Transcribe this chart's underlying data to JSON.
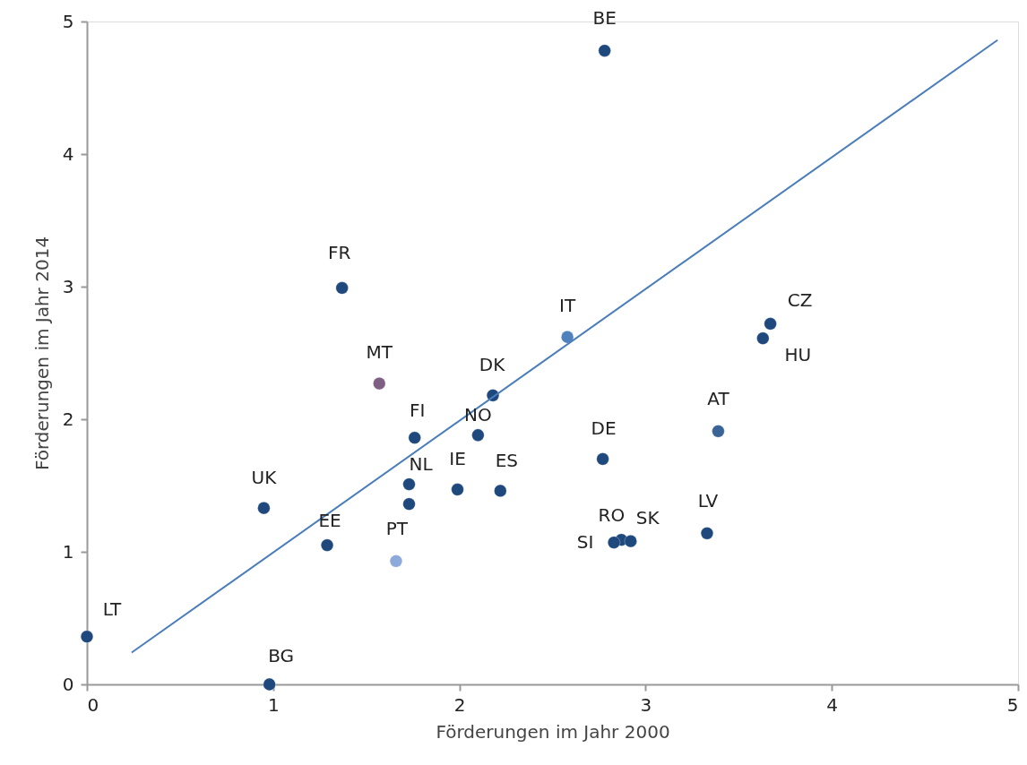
{
  "chart_data": {
    "type": "scatter",
    "xlabel": "Förderungen im Jahr 2000",
    "ylabel": "Förderungen im Jahr 2014",
    "xlim": [
      0,
      5
    ],
    "xticks": [
      0,
      1,
      2,
      3,
      4,
      5
    ],
    "ylim": [
      0,
      5
    ],
    "yticks": [
      0,
      1,
      2,
      3,
      4,
      5
    ],
    "grid": false,
    "marker": "circle",
    "series": [
      {
        "x": [
          2.78,
          1.37,
          1.57,
          2.58,
          3.67,
          3.63,
          2.18,
          3.39,
          1.76,
          2.1,
          2.77,
          1.73,
          1.73,
          1.99,
          2.22,
          0.95,
          1.29,
          1.66,
          2.87,
          2.92,
          2.83,
          3.33,
          0,
          0.98
        ],
        "values": [
          4.78,
          2.99,
          2.27,
          2.62,
          2.72,
          2.61,
          2.18,
          1.91,
          1.86,
          1.88,
          1.7,
          1.51,
          1.36,
          1.47,
          1.46,
          1.33,
          1.05,
          0.93,
          1.09,
          1.08,
          1.07,
          1.14,
          0.36,
          0
        ],
        "colors": [
          "#1f497d",
          "#1f497d",
          "#7f6084",
          "#4f81bd",
          "#1f497d",
          "#1f497d",
          "#1f497d",
          "#3a6496",
          "#1f497d",
          "#1f497d",
          "#1f497d",
          "#1f497d",
          "#1f497d",
          "#1f497d",
          "#1f497d",
          "#1f497d",
          "#1f497d",
          "#8eaadb",
          "#1f497d",
          "#1f497d",
          "#1f497d",
          "#1f497d",
          "#1f497d",
          "#1f497d"
        ]
      },
      {
        "type": "line",
        "marker": "none",
        "line_style": "solid",
        "color": "#4a7ebb",
        "x": [
          0.24,
          4.89
        ],
        "values": [
          0.24,
          4.86
        ]
      }
    ],
    "annotations": [
      {
        "text": "BE",
        "x": 2.78,
        "y": 4.78
      },
      {
        "text": "FR",
        "x": 1.37,
        "y": 2.99
      },
      {
        "text": "MT",
        "x": 1.57,
        "y": 2.27
      },
      {
        "text": "IT",
        "x": 2.58,
        "y": 2.62
      },
      {
        "text": "CZ",
        "x": 3.67,
        "y": 2.72
      },
      {
        "text": "HU",
        "x": 3.63,
        "y": 2.61
      },
      {
        "text": "DK",
        "x": 2.18,
        "y": 2.18
      },
      {
        "text": "AT",
        "x": 3.39,
        "y": 1.91
      },
      {
        "text": "FI",
        "x": 1.76,
        "y": 1.86
      },
      {
        "text": "NO",
        "x": 2.1,
        "y": 1.88
      },
      {
        "text": "DE",
        "x": 2.77,
        "y": 1.7
      },
      {
        "text": "NL",
        "x": 1.73,
        "y": 1.51
      },
      {
        "text": "IE",
        "x": 1.99,
        "y": 1.47
      },
      {
        "text": "ES",
        "x": 2.22,
        "y": 1.46
      },
      {
        "text": "UK",
        "x": 0.95,
        "y": 1.33
      },
      {
        "text": "EE",
        "x": 1.29,
        "y": 1.05
      },
      {
        "text": "PT",
        "x": 1.66,
        "y": 0.93
      },
      {
        "text": "RO",
        "x": 2.87,
        "y": 1.09
      },
      {
        "text": "SK",
        "x": 2.92,
        "y": 1.08
      },
      {
        "text": "SI",
        "x": 2.83,
        "y": 1.07
      },
      {
        "text": "LV",
        "x": 3.33,
        "y": 1.14
      },
      {
        "text": "LT",
        "x": 0,
        "y": 0.36
      },
      {
        "text": "BG",
        "x": 0.98,
        "y": 0
      }
    ]
  }
}
